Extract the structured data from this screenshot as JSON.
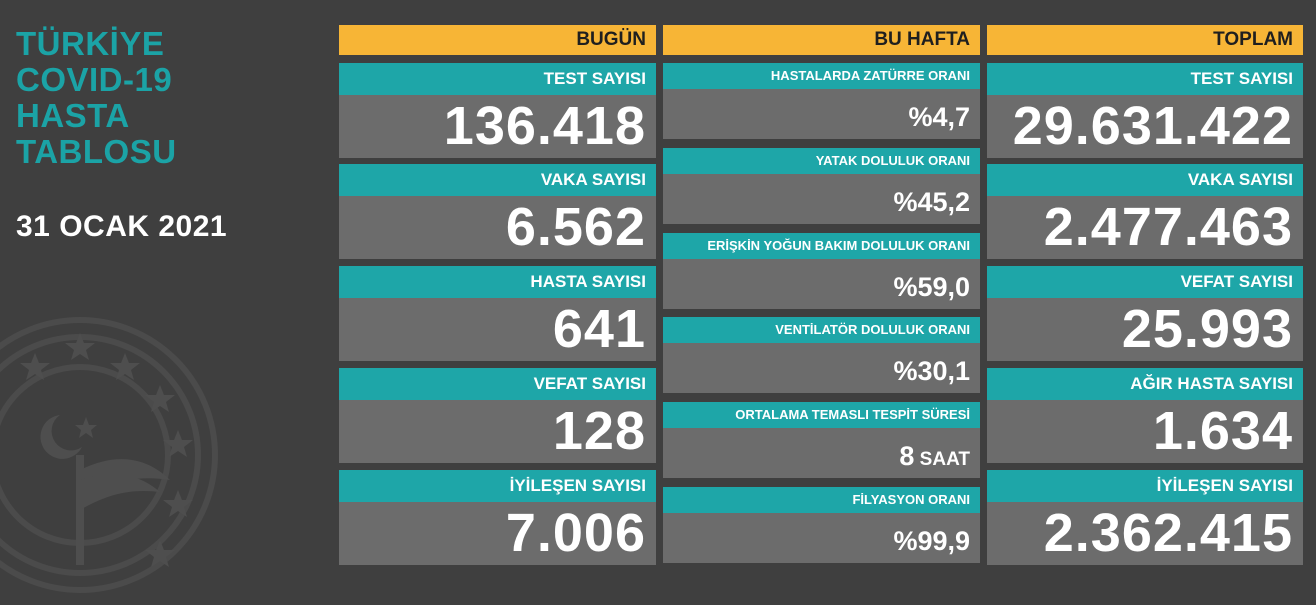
{
  "title": "TÜRKİYE\nCOVID-19\nHASTA\nTABLOSU",
  "date": "31 OCAK 2021",
  "today": {
    "header": "BUGÜN",
    "items": [
      {
        "label": "TEST SAYISI",
        "value": "136.418"
      },
      {
        "label": "VAKA SAYISI",
        "value": "6.562"
      },
      {
        "label": "HASTA SAYISI",
        "value": "641"
      },
      {
        "label": "VEFAT SAYISI",
        "value": "128"
      },
      {
        "label": "İYİLEŞEN SAYISI",
        "value": "7.006"
      }
    ]
  },
  "week": {
    "header": "BU HAFTA",
    "items": [
      {
        "label": "HASTALARDA ZATÜRRE ORANI",
        "value": "%4,7"
      },
      {
        "label": "YATAK DOLULUK ORANI",
        "value": "%45,2"
      },
      {
        "label": "ERİŞKİN YOĞUN BAKIM DOLULUK ORANI",
        "value": "%59,0"
      },
      {
        "label": "VENTİLATÖR DOLULUK ORANI",
        "value": "%30,1"
      },
      {
        "label": "ORTALAMA TEMASLI TESPİT SÜRESİ",
        "value": "8",
        "unit": " SAAT"
      },
      {
        "label": "FİLYASYON ORANI",
        "value": "%99,9"
      }
    ]
  },
  "total": {
    "header": "TOPLAM",
    "items": [
      {
        "label": "TEST SAYISI",
        "value": "29.631.422"
      },
      {
        "label": "VAKA SAYISI",
        "value": "2.477.463"
      },
      {
        "label": "VEFAT SAYISI",
        "value": "25.993"
      },
      {
        "label": "AĞIR HASTA SAYISI",
        "value": "1.634"
      },
      {
        "label": "İYİLEŞEN SAYISI",
        "value": "2.362.415"
      }
    ]
  },
  "colors": {
    "background": "#3f3f3f",
    "header": "#f7b536",
    "label": "#1ea6a8",
    "value_box": "#6c6c6c",
    "title": "#1ba3a6"
  },
  "icons": [
    "ministry-emblem-icon"
  ]
}
